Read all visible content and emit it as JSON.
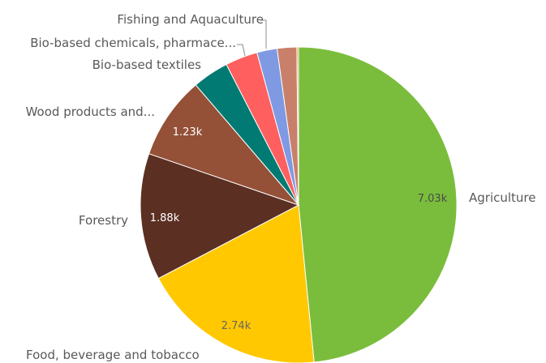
{
  "chart_data": {
    "type": "pie",
    "slices": [
      {
        "label": "Agriculture",
        "value": 7030,
        "value_label": "7.03k",
        "color": "#7abd3c",
        "value_color": "#4a4a4a"
      },
      {
        "label": "Food, beverage and tobacco",
        "value": 2740,
        "value_label": "2.74k",
        "color": "#ffc800",
        "value_color": "#666666"
      },
      {
        "label": "Forestry",
        "value": 1880,
        "value_label": "1.88k",
        "color": "#5b2f22",
        "value_color": "#ffffff"
      },
      {
        "label": "Wood products and...",
        "value": 1230,
        "value_label": "1.23k",
        "color": "#945138",
        "value_color": "#ffffff"
      },
      {
        "label": "",
        "value": 540,
        "value_label": "",
        "color": "#007a73",
        "value_color": "#ffffff"
      },
      {
        "label": "Bio-based textiles",
        "value": 480,
        "value_label": "",
        "color": "#ff5f5f",
        "value_color": "#ffffff"
      },
      {
        "label": "Bio-based chemicals, pharmace...",
        "value": 300,
        "value_label": "",
        "color": "#7f99e3",
        "value_color": "#ffffff"
      },
      {
        "label": "Fishing and Aquaculture",
        "value": 290,
        "value_label": "",
        "color": "#c9806a",
        "value_color": "#ffffff"
      },
      {
        "label": "",
        "value": 25,
        "value_label": "",
        "color": "#d4a84b",
        "value_color": "#ffffff"
      }
    ]
  }
}
